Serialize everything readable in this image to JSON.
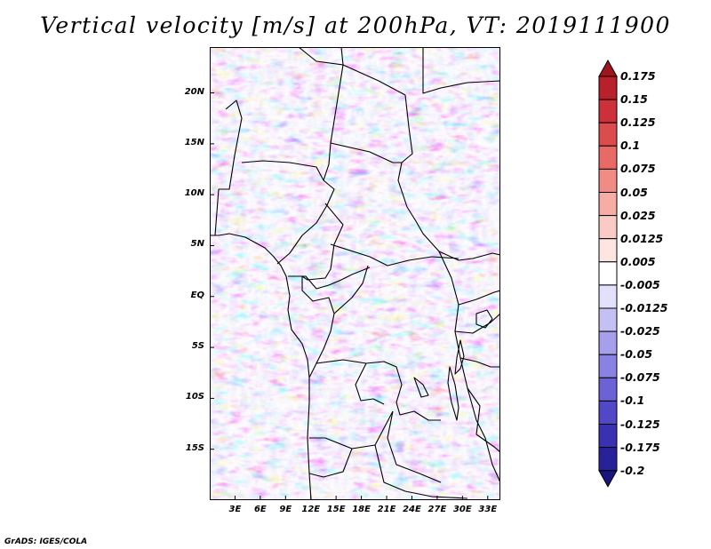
{
  "title": "Vertical velocity [m/s] at 200hPa, VT: 2019111900",
  "footer": "GrADS: IGES/COLA",
  "y_axis": {
    "labels": [
      "20N",
      "15N",
      "10N",
      "5N",
      "EQ",
      "5S",
      "10S",
      "15S"
    ],
    "values": [
      20,
      15,
      10,
      5,
      0,
      -5,
      -10,
      -15
    ],
    "range": [
      -20,
      24.5
    ]
  },
  "x_axis": {
    "labels": [
      "3E",
      "6E",
      "9E",
      "12E",
      "15E",
      "18E",
      "21E",
      "24E",
      "27E",
      "30E",
      "33E"
    ],
    "values": [
      3,
      6,
      9,
      12,
      15,
      18,
      21,
      24,
      27,
      30,
      33
    ],
    "range": [
      0,
      34.5
    ]
  },
  "colorbar": {
    "labels": [
      "0.175",
      "0.15",
      "0.125",
      "0.1",
      "0.075",
      "0.05",
      "0.025",
      "0.0125",
      "0.005",
      "-0.005",
      "-0.0125",
      "-0.025",
      "-0.05",
      "-0.075",
      "-0.1",
      "-0.125",
      "-0.175",
      "-0.2"
    ],
    "colors": [
      "#a0141e",
      "#b8202a",
      "#cc3038",
      "#dc4c4c",
      "#e86a66",
      "#f08c84",
      "#f6aea4",
      "#facbc4",
      "#fde6e2",
      "#ffffff",
      "#e2e0fa",
      "#c4c0f4",
      "#a6a0ec",
      "#8a82e2",
      "#6c62d6",
      "#5048c6",
      "#3a30b2",
      "#28229a",
      "#1a1480"
    ]
  },
  "colors": {
    "positive_accent": "#dc4c4c",
    "negative_accent": "#6c62d6",
    "background": "#ffffff"
  }
}
